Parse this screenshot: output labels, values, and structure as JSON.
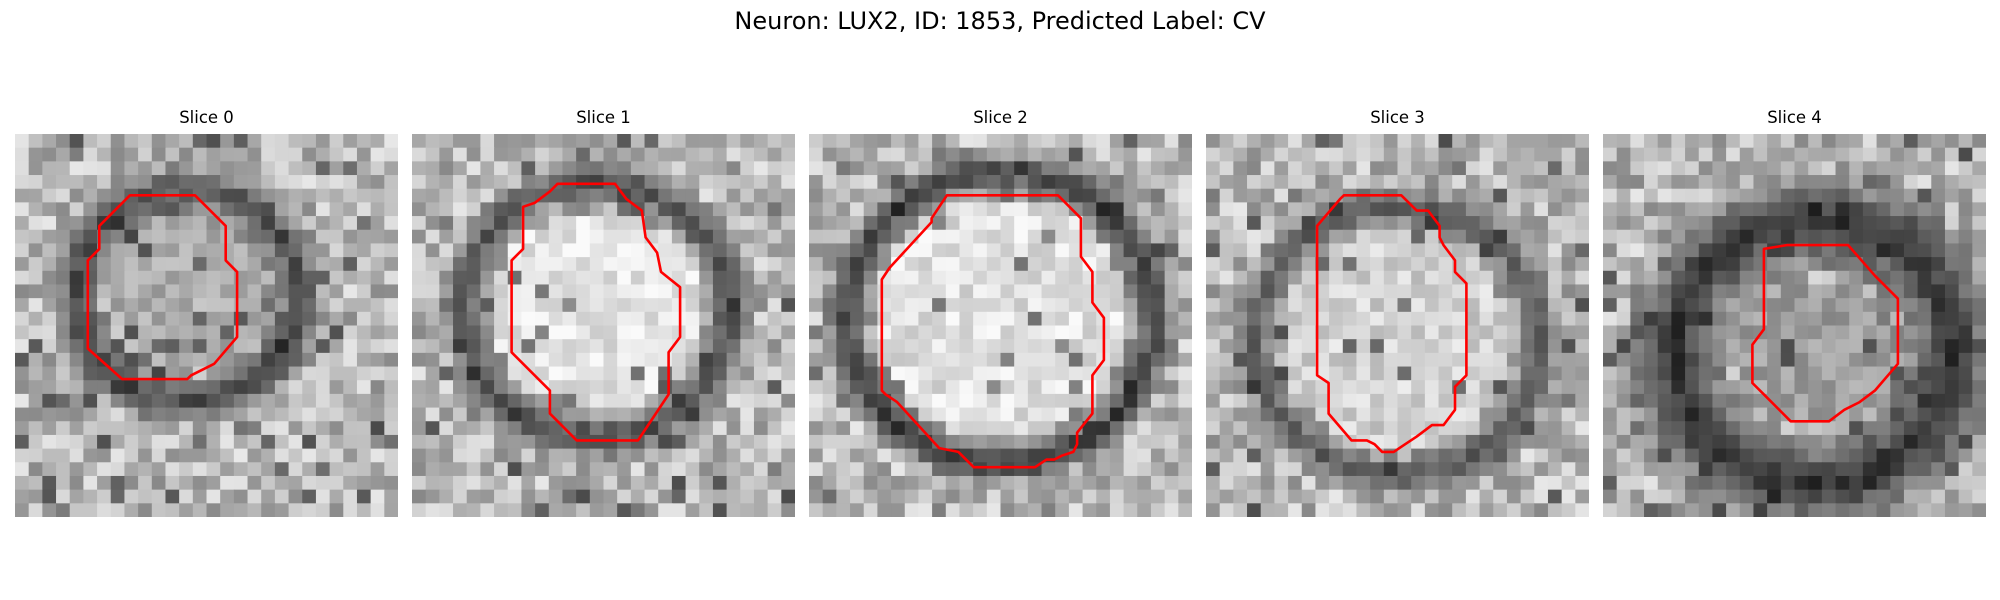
{
  "figure": {
    "title": "Neuron: LUX2, ID: 1853, Predicted Label: CV"
  },
  "colors": {
    "outline": "#ff0000",
    "background": "#ffffff"
  },
  "slices": [
    {
      "title": "Slice 0",
      "center": [
        0.45,
        0.42
      ],
      "radius": 0.29,
      "ring_width": 0.085,
      "ring_dark": 0.18,
      "inner_light": 0.68,
      "outline": [
        [
          0.32,
          0.16
        ],
        [
          0.47,
          0.16
        ],
        [
          0.55,
          0.24
        ],
        [
          0.55,
          0.33
        ],
        [
          0.58,
          0.36
        ],
        [
          0.58,
          0.53
        ],
        [
          0.52,
          0.6
        ],
        [
          0.46,
          0.63
        ],
        [
          0.45,
          0.64
        ],
        [
          0.28,
          0.64
        ],
        [
          0.19,
          0.56
        ],
        [
          0.19,
          0.33
        ],
        [
          0.22,
          0.3
        ],
        [
          0.22,
          0.24
        ],
        [
          0.3,
          0.16
        ]
      ]
    },
    {
      "title": "Slice 1",
      "center": [
        0.48,
        0.46
      ],
      "radius": 0.35,
      "ring_width": 0.075,
      "ring_dark": 0.2,
      "inner_light": 0.9,
      "outline": [
        [
          0.32,
          0.18
        ],
        [
          0.36,
          0.15
        ],
        [
          0.38,
          0.13
        ],
        [
          0.53,
          0.13
        ],
        [
          0.56,
          0.17
        ],
        [
          0.6,
          0.2
        ],
        [
          0.61,
          0.27
        ],
        [
          0.64,
          0.31
        ],
        [
          0.65,
          0.36
        ],
        [
          0.7,
          0.4
        ],
        [
          0.7,
          0.53
        ],
        [
          0.67,
          0.57
        ],
        [
          0.67,
          0.68
        ],
        [
          0.59,
          0.8
        ],
        [
          0.43,
          0.8
        ],
        [
          0.36,
          0.73
        ],
        [
          0.36,
          0.67
        ],
        [
          0.26,
          0.57
        ],
        [
          0.26,
          0.33
        ],
        [
          0.29,
          0.3
        ],
        [
          0.29,
          0.19
        ],
        [
          0.32,
          0.18
        ]
      ]
    },
    {
      "title": "Slice 2",
      "center": [
        0.5,
        0.48
      ],
      "radius": 0.4,
      "ring_width": 0.07,
      "ring_dark": 0.12,
      "inner_light": 0.88,
      "outline": [
        [
          0.32,
          0.22
        ],
        [
          0.36,
          0.16
        ],
        [
          0.65,
          0.16
        ],
        [
          0.71,
          0.22
        ],
        [
          0.71,
          0.32
        ],
        [
          0.74,
          0.36
        ],
        [
          0.74,
          0.44
        ],
        [
          0.77,
          0.48
        ],
        [
          0.77,
          0.59
        ],
        [
          0.74,
          0.63
        ],
        [
          0.74,
          0.73
        ],
        [
          0.7,
          0.78
        ],
        [
          0.7,
          0.81
        ],
        [
          0.69,
          0.83
        ],
        [
          0.66,
          0.84
        ],
        [
          0.64,
          0.85
        ],
        [
          0.62,
          0.85
        ],
        [
          0.59,
          0.87
        ],
        [
          0.43,
          0.87
        ],
        [
          0.39,
          0.83
        ],
        [
          0.34,
          0.82
        ],
        [
          0.23,
          0.7
        ],
        [
          0.2,
          0.68
        ],
        [
          0.19,
          0.67
        ],
        [
          0.19,
          0.38
        ],
        [
          0.21,
          0.35
        ],
        [
          0.32,
          0.23
        ]
      ]
    },
    {
      "title": "Slice 3",
      "center": [
        0.5,
        0.54
      ],
      "radius": 0.37,
      "ring_width": 0.075,
      "ring_dark": 0.25,
      "inner_light": 0.82,
      "outline": [
        [
          0.36,
          0.16
        ],
        [
          0.51,
          0.16
        ],
        [
          0.55,
          0.2
        ],
        [
          0.58,
          0.2
        ],
        [
          0.61,
          0.24
        ],
        [
          0.61,
          0.27
        ],
        [
          0.62,
          0.29
        ],
        [
          0.65,
          0.33
        ],
        [
          0.65,
          0.36
        ],
        [
          0.68,
          0.39
        ],
        [
          0.68,
          0.63
        ],
        [
          0.65,
          0.66
        ],
        [
          0.65,
          0.72
        ],
        [
          0.62,
          0.76
        ],
        [
          0.59,
          0.76
        ],
        [
          0.55,
          0.79
        ],
        [
          0.52,
          0.81
        ],
        [
          0.49,
          0.83
        ],
        [
          0.46,
          0.83
        ],
        [
          0.44,
          0.81
        ],
        [
          0.42,
          0.8
        ],
        [
          0.38,
          0.8
        ],
        [
          0.32,
          0.73
        ],
        [
          0.32,
          0.65
        ],
        [
          0.29,
          0.63
        ],
        [
          0.29,
          0.24
        ],
        [
          0.35,
          0.17
        ]
      ]
    },
    {
      "title": "Slice 4",
      "center": [
        0.55,
        0.57
      ],
      "radius": 0.36,
      "ring_width": 0.16,
      "ring_dark": 0.1,
      "inner_light": 0.62,
      "outline": [
        [
          0.42,
          0.3
        ],
        [
          0.48,
          0.29
        ],
        [
          0.64,
          0.29
        ],
        [
          0.71,
          0.37
        ],
        [
          0.77,
          0.43
        ],
        [
          0.77,
          0.6
        ],
        [
          0.71,
          0.67
        ],
        [
          0.67,
          0.7
        ],
        [
          0.63,
          0.72
        ],
        [
          0.59,
          0.75
        ],
        [
          0.49,
          0.75
        ],
        [
          0.42,
          0.68
        ],
        [
          0.39,
          0.65
        ],
        [
          0.39,
          0.55
        ],
        [
          0.42,
          0.51
        ],
        [
          0.42,
          0.38
        ]
      ]
    }
  ]
}
